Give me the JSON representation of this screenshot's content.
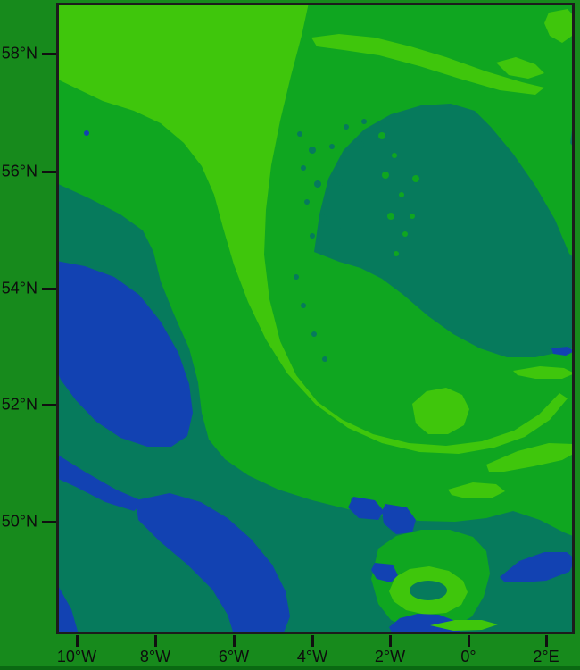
{
  "figure": {
    "title": "",
    "kind": "filled contour map of the British Isles / North Sea region",
    "background_color": "#178a1c",
    "frame_color": "#1c1c1c",
    "tick_color": "#101010",
    "label_color": "#0d0d0d"
  },
  "axes": {
    "x_ticks": [
      {
        "label": "10°W"
      },
      {
        "label": "8°W"
      },
      {
        "label": "6°W"
      },
      {
        "label": "4°W"
      },
      {
        "label": "2°W"
      },
      {
        "label": "0°"
      },
      {
        "label": "2°E"
      }
    ],
    "y_ticks": [
      {
        "label": "58°N"
      },
      {
        "label": "56°N"
      },
      {
        "label": "54°N"
      },
      {
        "label": "52°N"
      },
      {
        "label": "50°N"
      }
    ]
  },
  "chart_data": {
    "type": "heatmap",
    "subtype": "filled_contour_geographic_map",
    "title": "",
    "xlabel": "",
    "ylabel": "",
    "x_tick_labels": [
      "10°W",
      "8°W",
      "6°W",
      "4°W",
      "2°W",
      "0°",
      "2°E"
    ],
    "y_tick_labels": [
      "58°N",
      "56°N",
      "54°N",
      "52°N",
      "50°N"
    ],
    "legend": "none visible",
    "color_levels": [
      {
        "name": "lowest",
        "color": "#1242b2"
      },
      {
        "name": "low",
        "color": "#067a5c"
      },
      {
        "name": "mid",
        "color": "#0fa620"
      },
      {
        "name": "high",
        "color": "#3fc60c"
      }
    ],
    "features": [
      "bright-green comma/spiral band sweeping from the top-left down and curving east to ~1°E,52°N",
      "large teal cyclonic 'eye' region centered near 2°W,55°N reaching the east border",
      "speckled/dappled transition on the west edge of the teal eye",
      "large blue patch near 9°W,53°N (west of Ireland area)",
      "blue patches along the bottom between 9°W and 4°W near 49-50°N",
      "blue streak near 0.5°E,49.6°N and small blue blobs near 2°W,50°N",
      "bright-green blob with teal core near 2.5°W,49.2°N",
      "bright-green patch in the top-right corner near 2°E,58.7°N"
    ]
  }
}
